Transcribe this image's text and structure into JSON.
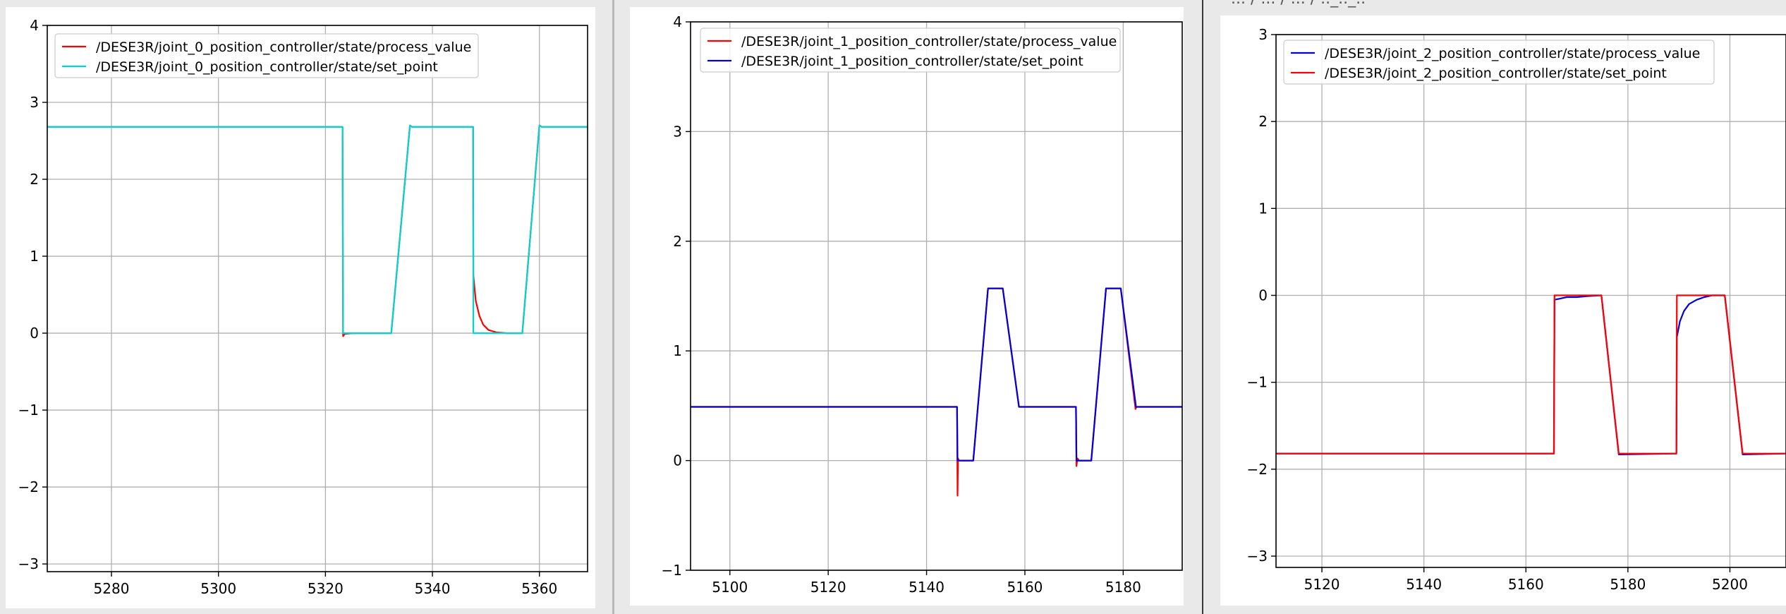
{
  "window": {
    "title_fragment": "... / ... / ... / .._.._.. "
  },
  "chart_data": [
    {
      "type": "line",
      "title": "",
      "xlabel": "",
      "ylabel": "",
      "xlim": [
        5268,
        5369
      ],
      "ylim": [
        -3.1,
        4
      ],
      "xticks": [
        5280,
        5300,
        5320,
        5340,
        5360
      ],
      "yticks": [
        -3,
        -2,
        -1,
        0,
        1,
        2,
        3,
        4
      ],
      "grid": true,
      "legend_position": "top-left",
      "series": [
        {
          "name": "/DESE3R/joint_0_position_controller/state/process_value",
          "color": "#ff0000",
          "x": [
            5268,
            5323.2,
            5323.3,
            5323.6,
            5325,
            5332.3,
            5335.8,
            5336.2,
            5347.6,
            5347.65,
            5348.1,
            5348.8,
            5349.5,
            5350.5,
            5352,
            5354,
            5356.8,
            5360,
            5360.5,
            5369
          ],
          "y": [
            2.68,
            2.68,
            -0.04,
            -0.01,
            0,
            0,
            2.7,
            2.68,
            2.68,
            0.75,
            0.42,
            0.22,
            0.11,
            0.04,
            0.01,
            0,
            0,
            2.7,
            2.68,
            2.68
          ]
        },
        {
          "name": "/DESE3R/joint_0_position_controller/state/set_point",
          "color": "#00d5d5",
          "x": [
            5268,
            5323.2,
            5323.3,
            5332.3,
            5335.8,
            5336.2,
            5347.6,
            5347.65,
            5356.8,
            5360,
            5360.5,
            5369
          ],
          "y": [
            2.68,
            2.68,
            0,
            0,
            2.7,
            2.68,
            2.68,
            0,
            0,
            2.7,
            2.68,
            2.68
          ]
        }
      ]
    },
    {
      "type": "line",
      "title": "",
      "xlabel": "",
      "ylabel": "",
      "xlim": [
        5092,
        5192
      ],
      "ylim": [
        -1,
        4
      ],
      "xticks": [
        5100,
        5120,
        5140,
        5160,
        5180
      ],
      "yticks": [
        -1,
        0,
        1,
        2,
        3,
        4
      ],
      "grid": true,
      "legend_position": "top-left",
      "series": [
        {
          "name": "/DESE3R/joint_1_position_controller/state/process_value",
          "color": "#ff0000",
          "x": [
            5092,
            5146.2,
            5146.3,
            5146.4,
            5146.6,
            5147,
            5149.5,
            5152.5,
            5155.5,
            5158.8,
            5159,
            5170.4,
            5170.5,
            5170.7,
            5171,
            5173.5,
            5176.5,
            5179.5,
            5182.5,
            5182.7,
            5192
          ],
          "y": [
            0.49,
            0.49,
            -0.32,
            0.02,
            0,
            0,
            0,
            1.57,
            1.57,
            0.49,
            0.49,
            0.49,
            -0.05,
            0.02,
            0,
            0,
            1.57,
            1.57,
            0.47,
            0.49,
            0.49
          ]
        },
        {
          "name": "/DESE3R/joint_1_position_controller/state/set_point",
          "color": "#0000dd",
          "x": [
            5092,
            5146.2,
            5146.3,
            5149.5,
            5152.5,
            5155.5,
            5158.8,
            5170.4,
            5170.5,
            5173.5,
            5176.5,
            5179.5,
            5182.6,
            5192
          ],
          "y": [
            0.49,
            0.49,
            0,
            0,
            1.57,
            1.57,
            0.49,
            0.49,
            0,
            0,
            1.57,
            1.57,
            0.49,
            0.49
          ]
        }
      ]
    },
    {
      "type": "line",
      "title": "",
      "xlabel": "",
      "ylabel": "",
      "xlim": [
        5111,
        5211
      ],
      "ylim": [
        -3.13,
        3
      ],
      "xticks": [
        5120,
        5140,
        5160,
        5180,
        5200
      ],
      "yticks": [
        -3,
        -2,
        -1,
        0,
        1,
        2,
        3
      ],
      "grid": true,
      "legend_position": "top-left",
      "series": [
        {
          "name": "/DESE3R/joint_2_position_controller/state/process_value",
          "color": "#0000dd",
          "x": [
            5111,
            5165.5,
            5165.6,
            5166.5,
            5168,
            5170,
            5172,
            5174.8,
            5178.2,
            5189.5,
            5189.6,
            5190.2,
            5191,
            5192,
            5193.5,
            5195,
            5196.5,
            5199,
            5202.5,
            5211
          ],
          "y": [
            -1.82,
            -1.82,
            -0.05,
            -0.04,
            -0.02,
            -0.02,
            -0.01,
            0,
            -1.83,
            -1.82,
            -0.48,
            -0.3,
            -0.18,
            -0.1,
            -0.05,
            -0.02,
            0,
            0,
            -1.83,
            -1.82
          ]
        },
        {
          "name": "/DESE3R/joint_2_position_controller/state/set_point",
          "color": "#ff0000",
          "x": [
            5111,
            5165.5,
            5165.6,
            5174.8,
            5178.2,
            5189.5,
            5189.6,
            5199,
            5202.5,
            5211
          ],
          "y": [
            -1.82,
            -1.82,
            0,
            0,
            -1.82,
            -1.82,
            0,
            0,
            -1.82,
            -1.82
          ]
        }
      ]
    }
  ]
}
